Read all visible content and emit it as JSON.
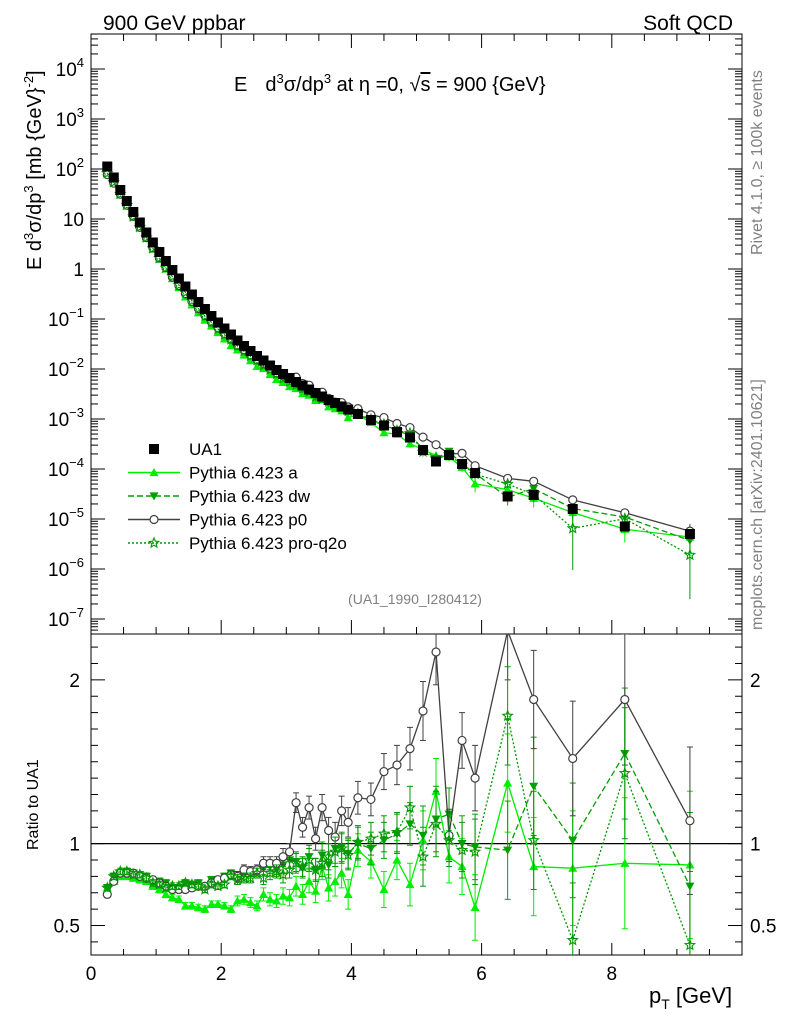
{
  "header": {
    "left": "900 GeV ppbar",
    "right": "Soft QCD"
  },
  "side_labels": {
    "rivet": "Rivet 4.1.0, ≥ 100k events",
    "mcplots": "mcplots.cern.ch [arXiv:2401.10621]"
  },
  "chart_data": {
    "type": "scatter",
    "title": "E d³σ/dp³ at η =0, √s = 900 {GeV}",
    "title_parts": {
      "e": "E",
      "d": "d",
      "three_a": "3",
      "sigma": "σ/dp",
      "three_b": "3",
      "rest": " at η =0, ",
      "sqrt": "√",
      "s": "s",
      "tail": " = 900 {GeV}"
    },
    "ylabel_parts": {
      "e": "E d",
      "three_a": "3",
      "sigma": "σ/dp",
      "three_b": "3",
      "unit": " [mb {GeV}",
      "exp": "-2",
      "close": "]"
    },
    "xlabel_parts": {
      "p": "p",
      "sub": "T",
      "unit": " [GeV]"
    },
    "ratio_ylabel": "Ratio to UA1",
    "watermark": "(UA1_1990_I280412)",
    "xlim": [
      0,
      10
    ],
    "ylim_log": [
      -7.3,
      4.7
    ],
    "ratio_ylim": [
      0.32,
      2.28
    ],
    "x_ticks": [
      "0",
      "2",
      "4",
      "6",
      "8"
    ],
    "x_tick_values": [
      0,
      2,
      4,
      6,
      8
    ],
    "y_ticks": [
      {
        "v": 4,
        "base": "10",
        "exp": "4"
      },
      {
        "v": 3,
        "base": "10",
        "exp": "3"
      },
      {
        "v": 2,
        "base": "10",
        "exp": "2"
      },
      {
        "v": 1,
        "base": "10",
        "exp": ""
      },
      {
        "v": 0,
        "base": "1",
        "exp": ""
      },
      {
        "v": -1,
        "base": "10",
        "exp": "−1"
      },
      {
        "v": -2,
        "base": "10",
        "exp": "−2"
      },
      {
        "v": -3,
        "base": "10",
        "exp": "−3"
      },
      {
        "v": -4,
        "base": "10",
        "exp": "−4"
      },
      {
        "v": -5,
        "base": "10",
        "exp": "−5"
      },
      {
        "v": -6,
        "base": "10",
        "exp": "−6"
      },
      {
        "v": -7,
        "base": "10",
        "exp": "−7"
      }
    ],
    "ratio_ticks": [
      {
        "v": 0.5,
        "label": "0.5"
      },
      {
        "v": 1,
        "label": "1"
      },
      {
        "v": 2,
        "label": "2"
      }
    ],
    "legend": [
      {
        "name": "UA1",
        "color": "#000000",
        "marker": "square",
        "dash": "none"
      },
      {
        "name": "Pythia 6.423 a",
        "color": "#00ee00",
        "marker": "triangle",
        "dash": "solid"
      },
      {
        "name": "Pythia 6.423 dw",
        "color": "#00a000",
        "marker": "triangle-down",
        "dash": "dashed"
      },
      {
        "name": "Pythia 6.423 p0",
        "color": "#404040",
        "marker": "circle",
        "dash": "solid"
      },
      {
        "name": "Pythia 6.423 pro-q2o",
        "color": "#009900",
        "marker": "star",
        "dash": "dotted"
      }
    ],
    "x": [
      0.25,
      0.35,
      0.45,
      0.55,
      0.65,
      0.75,
      0.85,
      0.95,
      1.05,
      1.15,
      1.25,
      1.35,
      1.45,
      1.55,
      1.65,
      1.75,
      1.85,
      1.95,
      2.05,
      2.15,
      2.25,
      2.35,
      2.45,
      2.55,
      2.65,
      2.75,
      2.85,
      2.95,
      3.05,
      3.15,
      3.25,
      3.35,
      3.45,
      3.55,
      3.65,
      3.75,
      3.85,
      3.95,
      4.1,
      4.3,
      4.5,
      4.7,
      4.9,
      5.1,
      5.3,
      5.5,
      5.7,
      5.9,
      6.4,
      6.8,
      7.4,
      8.2,
      9.2
    ],
    "data_log": [
      2.05,
      1.83,
      1.58,
      1.36,
      1.14,
      0.93,
      0.73,
      0.53,
      0.34,
      0.16,
      -0.02,
      -0.19,
      -0.35,
      -0.51,
      -0.66,
      -0.8,
      -0.94,
      -1.07,
      -1.19,
      -1.31,
      -1.43,
      -1.54,
      -1.64,
      -1.74,
      -1.83,
      -1.93,
      -2.02,
      -2.1,
      -2.18,
      -2.26,
      -2.33,
      -2.41,
      -2.48,
      -2.55,
      -2.62,
      -2.68,
      -2.75,
      -2.81,
      -2.9,
      -3.02,
      -3.13,
      -3.26,
      -3.37,
      -3.62,
      -3.85,
      -3.72,
      -3.9,
      -4.08,
      -4.55,
      -4.52,
      -4.8,
      -5.15,
      -5.3
    ],
    "series": [
      {
        "name": "Pythia 6.423 a",
        "ratio": [
          0.73,
          0.77,
          0.8,
          0.8,
          0.79,
          0.78,
          0.77,
          0.74,
          0.72,
          0.69,
          0.67,
          0.66,
          0.62,
          0.62,
          0.61,
          0.6,
          0.63,
          0.63,
          0.62,
          0.6,
          0.65,
          0.66,
          0.64,
          0.62,
          0.69,
          0.66,
          0.65,
          0.68,
          0.67,
          0.74,
          0.69,
          0.77,
          0.71,
          0.86,
          0.73,
          0.77,
          0.82,
          0.69,
          0.96,
          0.89,
          0.72,
          0.9,
          0.75,
          1.02,
          1.32,
          0.92,
          0.86,
          0.61,
          1.37,
          0.86,
          0.85,
          0.88,
          0.87
        ],
        "err": [
          0.02,
          0.02,
          0.02,
          0.02,
          0.02,
          0.02,
          0.02,
          0.02,
          0.02,
          0.02,
          0.02,
          0.02,
          0.02,
          0.02,
          0.02,
          0.02,
          0.02,
          0.02,
          0.02,
          0.02,
          0.03,
          0.03,
          0.03,
          0.03,
          0.04,
          0.04,
          0.04,
          0.05,
          0.05,
          0.06,
          0.06,
          0.07,
          0.07,
          0.08,
          0.08,
          0.09,
          0.09,
          0.09,
          0.1,
          0.1,
          0.11,
          0.12,
          0.13,
          0.18,
          0.2,
          0.16,
          0.17,
          0.2,
          0.3,
          0.3,
          0.35,
          0.4,
          0.45
        ]
      },
      {
        "name": "Pythia 6.423 dw",
        "ratio": [
          0.73,
          0.8,
          0.82,
          0.83,
          0.82,
          0.81,
          0.8,
          0.77,
          0.77,
          0.76,
          0.73,
          0.73,
          0.76,
          0.75,
          0.76,
          0.74,
          0.78,
          0.78,
          0.8,
          0.82,
          0.8,
          0.81,
          0.82,
          0.82,
          0.85,
          0.86,
          0.84,
          0.87,
          0.9,
          0.89,
          0.85,
          0.92,
          0.84,
          0.93,
          0.87,
          0.97,
          0.98,
          0.94,
          1.0,
          0.97,
          1.02,
          1.06,
          1.12,
          1.05,
          1.15,
          1.18,
          1.0,
          0.98,
          0.96,
          1.35,
          1.02,
          1.55,
          0.74
        ],
        "err": [
          0.02,
          0.02,
          0.02,
          0.02,
          0.02,
          0.02,
          0.02,
          0.02,
          0.02,
          0.02,
          0.02,
          0.02,
          0.02,
          0.02,
          0.02,
          0.02,
          0.02,
          0.02,
          0.02,
          0.02,
          0.03,
          0.03,
          0.03,
          0.03,
          0.04,
          0.04,
          0.04,
          0.05,
          0.05,
          0.06,
          0.06,
          0.07,
          0.07,
          0.08,
          0.08,
          0.09,
          0.09,
          0.09,
          0.1,
          0.1,
          0.11,
          0.12,
          0.13,
          0.18,
          0.2,
          0.16,
          0.17,
          0.2,
          0.3,
          0.3,
          0.35,
          0.4,
          0.45
        ]
      },
      {
        "name": "Pythia 6.423 p0",
        "ratio": [
          0.69,
          0.77,
          0.82,
          0.82,
          0.82,
          0.8,
          0.79,
          0.78,
          0.76,
          0.74,
          0.72,
          0.72,
          0.72,
          0.73,
          0.74,
          0.74,
          0.76,
          0.78,
          0.79,
          0.81,
          0.8,
          0.84,
          0.83,
          0.84,
          0.88,
          0.88,
          0.88,
          0.92,
          0.95,
          1.25,
          1.1,
          1.22,
          1.03,
          1.22,
          1.08,
          1.04,
          1.2,
          1.13,
          1.28,
          1.27,
          1.44,
          1.48,
          1.58,
          1.81,
          2.17,
          1.05,
          1.63,
          1.4,
          2.3,
          1.88,
          1.52,
          1.88,
          1.14
        ],
        "err": [
          0.02,
          0.02,
          0.02,
          0.02,
          0.02,
          0.02,
          0.02,
          0.02,
          0.02,
          0.02,
          0.02,
          0.02,
          0.02,
          0.02,
          0.02,
          0.02,
          0.02,
          0.02,
          0.02,
          0.02,
          0.03,
          0.03,
          0.03,
          0.03,
          0.04,
          0.04,
          0.04,
          0.05,
          0.05,
          0.06,
          0.06,
          0.07,
          0.07,
          0.08,
          0.08,
          0.09,
          0.09,
          0.09,
          0.1,
          0.1,
          0.11,
          0.12,
          0.13,
          0.18,
          0.2,
          0.16,
          0.17,
          0.2,
          0.3,
          0.3,
          0.35,
          0.4,
          0.45
        ]
      },
      {
        "name": "Pythia 6.423 pro-q2o",
        "ratio": [
          0.73,
          0.8,
          0.83,
          0.83,
          0.81,
          0.81,
          0.79,
          0.76,
          0.75,
          0.73,
          0.74,
          0.74,
          0.76,
          0.75,
          0.74,
          0.72,
          0.75,
          0.74,
          0.75,
          0.8,
          0.78,
          0.79,
          0.79,
          0.82,
          0.79,
          0.82,
          0.83,
          0.81,
          0.84,
          0.88,
          0.86,
          0.9,
          0.84,
          0.88,
          0.92,
          0.95,
          0.97,
          0.93,
          1.01,
          1.03,
          1.06,
          1.07,
          1.22,
          0.92,
          1.12,
          1.02,
          0.96,
          0.95,
          1.78,
          1.02,
          0.41,
          1.43,
          0.38
        ],
        "err": [
          0.02,
          0.02,
          0.02,
          0.02,
          0.02,
          0.02,
          0.02,
          0.02,
          0.02,
          0.02,
          0.02,
          0.02,
          0.02,
          0.02,
          0.02,
          0.02,
          0.02,
          0.02,
          0.02,
          0.02,
          0.03,
          0.03,
          0.03,
          0.03,
          0.04,
          0.04,
          0.04,
          0.05,
          0.05,
          0.06,
          0.06,
          0.07,
          0.07,
          0.08,
          0.08,
          0.09,
          0.09,
          0.09,
          0.1,
          0.1,
          0.11,
          0.12,
          0.13,
          0.18,
          0.2,
          0.16,
          0.17,
          0.2,
          0.3,
          0.3,
          0.35,
          0.4,
          0.45
        ]
      }
    ]
  }
}
